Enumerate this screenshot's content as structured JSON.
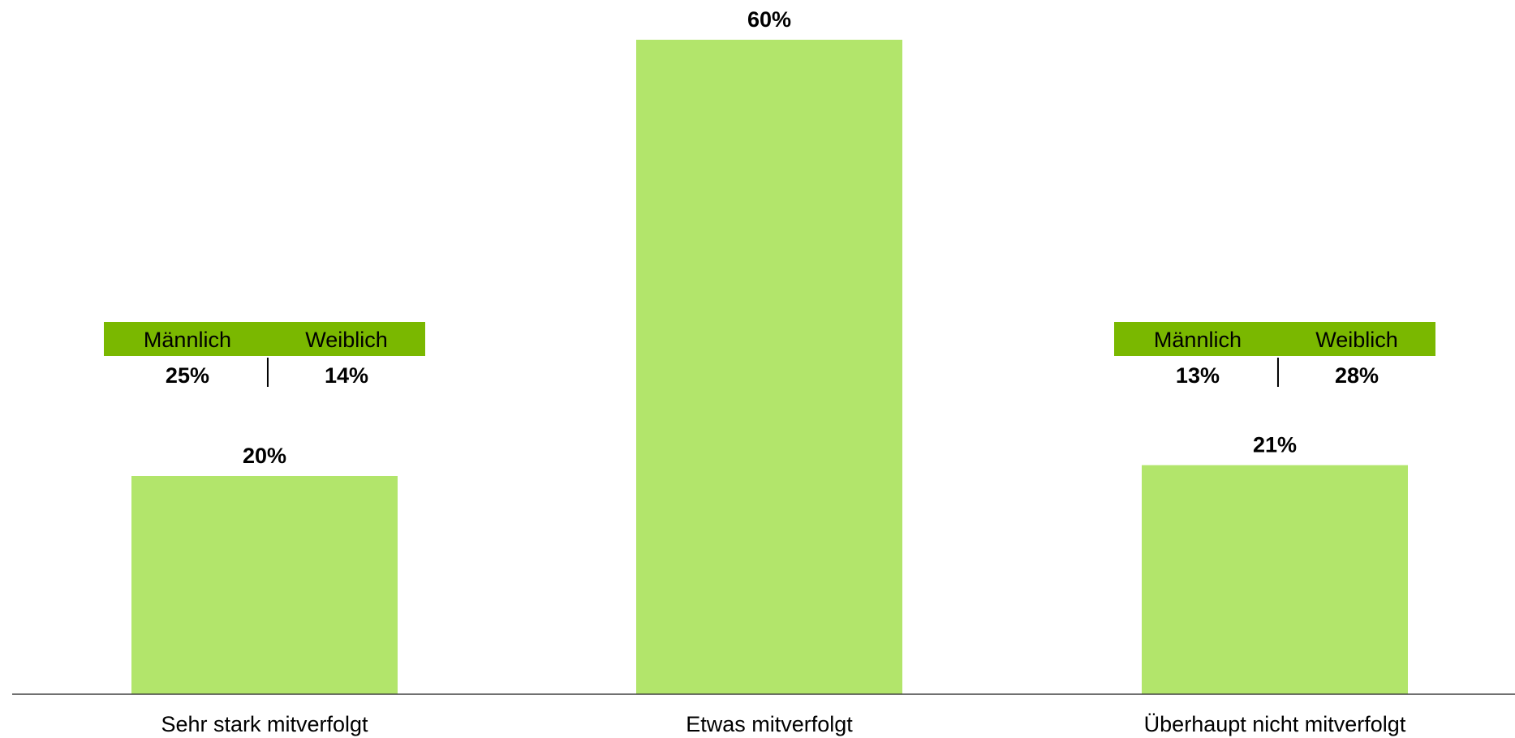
{
  "chart_data": {
    "type": "bar",
    "categories": [
      "Sehr stark mitverfolgt",
      "Etwas mitverfolgt",
      "Überhaupt nicht mitverfolgt"
    ],
    "values": [
      20,
      60,
      21
    ],
    "value_labels": [
      "20%",
      "60%",
      "21%"
    ],
    "ylim": [
      0,
      60
    ],
    "grid": false,
    "bar_color": "#b2e56b",
    "breakdowns": [
      {
        "category_index": 0,
        "headers": [
          "Männlich",
          "Weiblich"
        ],
        "values": [
          25,
          14
        ],
        "labels": [
          "25%",
          "14%"
        ]
      },
      {
        "category_index": 2,
        "headers": [
          "Männlich",
          "Weiblich"
        ],
        "values": [
          13,
          28
        ],
        "labels": [
          "13%",
          "28%"
        ]
      }
    ],
    "breakdown_header_color": "#7ab800"
  }
}
